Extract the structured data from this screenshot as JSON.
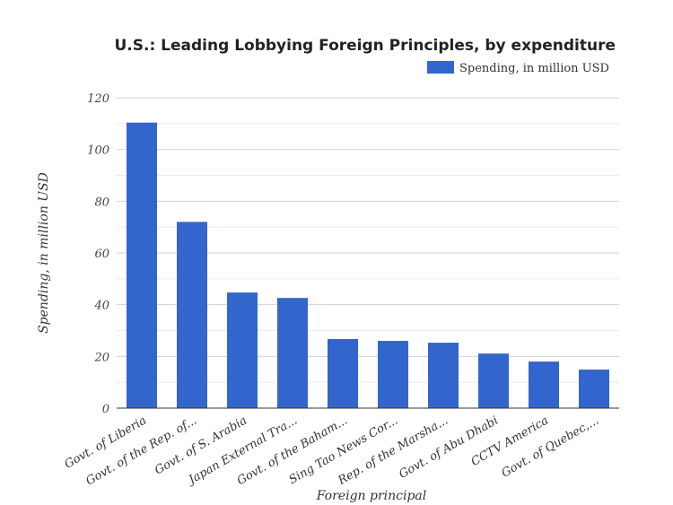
{
  "chart_data": {
    "type": "bar",
    "title": "U.S.: Leading Lobbying Foreign Principles, by expenditure",
    "xlabel": "Foreign principal",
    "ylabel": "Spending, in million USD",
    "ylim": [
      0,
      120
    ],
    "yticks": [
      "0",
      "20",
      "40",
      "60",
      "80",
      "100",
      "120"
    ],
    "grid": true,
    "legend_position": "top-right",
    "categories": [
      "Govt. of Liberia",
      "Govt. of the Rep. of...",
      "Govt. of S. Arabia",
      "Japan External Tra...",
      "Govt. of the Baham...",
      "Sing Tao News Cor...",
      "Rep. of the Marsha...",
      "Govt. of Abu Dhabi",
      "CCTV America",
      "Govt. of Quebec,..."
    ],
    "series": [
      {
        "name": "Spending, in million USD",
        "color": "#3366cc",
        "values": [
          110.4,
          72.0,
          44.7,
          42.6,
          26.7,
          26.0,
          25.3,
          21.1,
          18.0,
          14.9
        ]
      }
    ]
  }
}
